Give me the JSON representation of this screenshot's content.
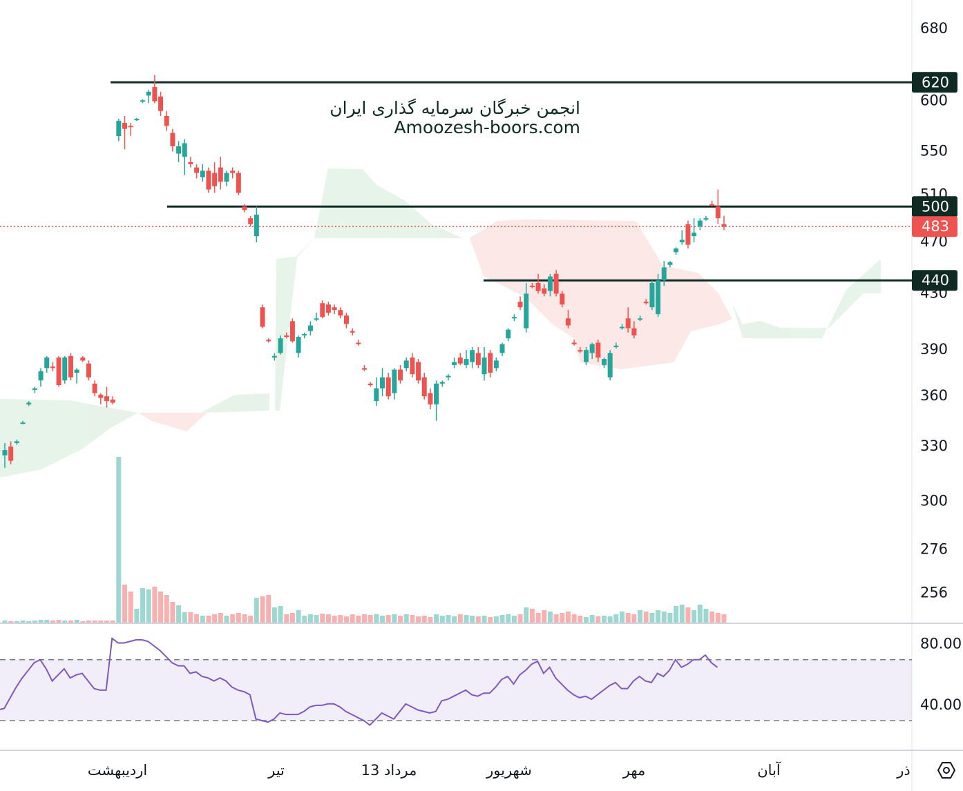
{
  "chart_data": {
    "type": "candlestick",
    "watermark": [
      "انجمن خبرگان سرمایه گذاری ایران",
      "Amoozesh-boors.com"
    ],
    "log_scale": true,
    "ylim": [
      243,
      715
    ],
    "yticks": [
      680,
      600,
      550,
      510,
      470,
      430,
      390,
      360,
      330,
      300,
      276,
      256
    ],
    "levels": [
      620,
      500,
      440
    ],
    "last_price": 483,
    "up_color": "#26a69a",
    "down_color": "#ef5350",
    "level_color": "#0e2a22",
    "time_labels": [
      "اردیبهشت",
      "تیر",
      "13 مرداد",
      "شهریور",
      "مهر",
      "آبان",
      "ذر"
    ],
    "candles": [
      [
        325,
        332,
        318,
        328
      ],
      [
        330,
        333,
        320,
        322
      ],
      [
        332,
        334,
        331,
        333
      ],
      [
        344,
        345,
        343,
        344
      ],
      [
        355,
        357,
        354,
        356
      ],
      [
        364,
        366,
        362,
        365
      ],
      [
        370,
        378,
        366,
        376
      ],
      [
        378,
        386,
        375,
        385
      ],
      [
        379,
        382,
        376,
        378
      ],
      [
        385,
        386,
        366,
        367
      ],
      [
        370,
        386,
        368,
        385
      ],
      [
        386,
        388,
        370,
        372
      ],
      [
        375,
        378,
        368,
        377
      ],
      [
        385,
        386,
        382,
        383
      ],
      [
        381,
        383,
        370,
        372
      ],
      [
        368,
        370,
        360,
        362
      ],
      [
        361,
        362,
        355,
        359
      ],
      [
        360,
        366,
        353,
        357
      ],
      [
        358,
        360,
        355,
        356
      ],
      [
        565,
        582,
        560,
        580
      ],
      [
        578,
        585,
        552,
        572
      ],
      [
        575,
        578,
        565,
        574
      ],
      [
        582,
        583,
        580,
        582
      ],
      [
        600,
        602,
        598,
        601
      ],
      [
        606,
        612,
        598,
        610
      ],
      [
        615,
        628,
        598,
        600
      ],
      [
        605,
        610,
        585,
        590
      ],
      [
        585,
        590,
        570,
        575
      ],
      [
        568,
        572,
        550,
        555
      ],
      [
        548,
        560,
        540,
        555
      ],
      [
        545,
        562,
        528,
        558
      ],
      [
        540,
        545,
        535,
        538
      ],
      [
        535,
        538,
        525,
        530
      ],
      [
        526,
        538,
        522,
        532
      ],
      [
        532,
        535,
        512,
        515
      ],
      [
        530,
        540,
        512,
        518
      ],
      [
        535,
        545,
        515,
        522
      ],
      [
        522,
        532,
        518,
        530
      ],
      [
        532,
        535,
        525,
        530
      ],
      [
        530,
        532,
        510,
        512
      ],
      [
        500,
        502,
        495,
        497
      ],
      [
        490,
        492,
        483,
        485
      ],
      [
        475,
        500,
        470,
        493
      ],
      [
        420,
        422,
        405,
        406
      ],
      [
        397,
        398,
        395,
        396
      ],
      [
        385,
        388,
        383,
        386
      ],
      [
        388,
        400,
        387,
        398
      ],
      [
        400,
        402,
        398,
        399
      ],
      [
        410,
        412,
        395,
        396
      ],
      [
        388,
        400,
        385,
        399
      ],
      [
        400,
        402,
        398,
        401
      ],
      [
        403,
        410,
        400,
        407
      ],
      [
        412,
        416,
        410,
        412
      ],
      [
        423,
        425,
        412,
        413
      ],
      [
        422,
        424,
        414,
        416
      ],
      [
        420,
        422,
        415,
        418
      ],
      [
        418,
        420,
        412,
        414
      ],
      [
        414,
        416,
        405,
        408
      ],
      [
        403,
        405,
        400,
        402
      ],
      [
        395,
        397,
        393,
        394
      ],
      [
        378,
        380,
        376,
        377
      ],
      [
        368,
        369,
        366,
        367
      ],
      [
        357,
        372,
        354,
        365
      ],
      [
        365,
        378,
        360,
        372
      ],
      [
        372,
        375,
        358,
        360
      ],
      [
        362,
        378,
        358,
        377
      ],
      [
        377,
        380,
        368,
        370
      ],
      [
        378,
        385,
        376,
        383
      ],
      [
        385,
        388,
        372,
        374
      ],
      [
        382,
        384,
        368,
        370
      ],
      [
        372,
        375,
        358,
        360
      ],
      [
        362,
        365,
        352,
        355
      ],
      [
        355,
        370,
        345,
        368
      ],
      [
        368,
        370,
        366,
        369
      ],
      [
        372,
        374,
        370,
        373
      ],
      [
        380,
        385,
        378,
        382
      ],
      [
        385,
        388,
        380,
        381
      ],
      [
        380,
        390,
        378,
        384
      ],
      [
        382,
        392,
        378,
        390
      ],
      [
        388,
        392,
        378,
        380
      ],
      [
        374,
        392,
        370,
        385
      ],
      [
        388,
        390,
        372,
        375
      ],
      [
        378,
        385,
        376,
        383
      ],
      [
        388,
        395,
        386,
        394
      ],
      [
        398,
        405,
        396,
        404
      ],
      [
        412,
        415,
        410,
        413
      ],
      [
        424,
        428,
        418,
        420
      ],
      [
        405,
        438,
        402,
        430
      ],
      [
        436,
        438,
        434,
        435
      ],
      [
        438,
        445,
        430,
        432
      ],
      [
        434,
        437,
        428,
        430
      ],
      [
        432,
        445,
        428,
        443
      ],
      [
        445,
        448,
        428,
        430
      ],
      [
        430,
        432,
        420,
        422
      ],
      [
        412,
        418,
        405,
        407
      ],
      [
        395,
        397,
        393,
        394
      ],
      [
        390,
        392,
        388,
        389
      ],
      [
        382,
        392,
        380,
        390
      ],
      [
        388,
        395,
        384,
        394
      ],
      [
        395,
        397,
        382,
        385
      ],
      [
        380,
        385,
        378,
        384
      ],
      [
        372,
        390,
        370,
        388
      ],
      [
        392,
        395,
        391,
        393
      ],
      [
        405,
        408,
        404,
        406
      ],
      [
        412,
        420,
        402,
        405
      ],
      [
        405,
        410,
        398,
        400
      ],
      [
        412,
        414,
        410,
        412
      ],
      [
        424,
        426,
        422,
        423
      ],
      [
        420,
        440,
        418,
        438
      ],
      [
        415,
        445,
        413,
        440
      ],
      [
        440,
        455,
        436,
        450
      ],
      [
        452,
        455,
        450,
        454
      ],
      [
        462,
        466,
        460,
        465
      ],
      [
        470,
        480,
        468,
        472
      ],
      [
        485,
        488,
        465,
        468
      ],
      [
        475,
        490,
        470,
        478
      ],
      [
        483,
        490,
        480,
        488
      ],
      [
        490,
        492,
        488,
        490
      ],
      [
        502,
        505,
        500,
        501
      ],
      [
        500,
        515,
        485,
        490
      ],
      [
        485,
        492,
        480,
        483
      ]
    ],
    "volume_lim": [
      0,
      250
    ],
    "volumes": [
      3,
      2,
      2,
      3,
      2,
      3,
      4,
      4,
      3,
      4,
      3,
      3,
      4,
      2,
      3,
      3,
      3,
      3,
      3,
      240,
      55,
      45,
      20,
      50,
      48,
      52,
      45,
      40,
      30,
      25,
      15,
      15,
      12,
      10,
      10,
      12,
      14,
      10,
      12,
      14,
      12,
      10,
      36,
      38,
      40,
      22,
      24,
      12,
      14,
      18,
      10,
      12,
      11,
      13,
      12,
      10,
      11,
      9,
      12,
      10,
      12,
      11,
      12,
      10,
      11,
      12,
      10,
      12,
      11,
      9,
      10,
      8,
      12,
      10,
      11,
      9,
      12,
      11,
      10,
      9,
      10,
      8,
      9,
      11,
      12,
      10,
      12,
      22,
      20,
      14,
      18,
      16,
      12,
      14,
      16,
      12,
      10,
      8,
      11,
      9,
      10,
      9,
      12,
      16,
      14,
      12,
      18,
      16,
      14,
      18,
      16,
      14,
      24,
      26,
      22,
      18,
      26,
      20,
      16,
      14,
      12
    ],
    "rsi_color": "#7e57c2",
    "rsi_ylim": [
      10.5,
      93
    ],
    "rsi_band": [
      30,
      70
    ],
    "rsi_ticks": [
      {
        "value": 80,
        "label": "80.00"
      },
      {
        "value": 40,
        "label": "40.00"
      }
    ],
    "rsi": [
      37,
      38,
      45,
      52,
      58,
      63,
      68,
      70,
      64,
      56,
      60,
      64,
      58,
      60,
      61,
      56,
      51,
      50,
      50,
      84,
      81,
      81,
      82,
      83,
      83,
      82,
      79,
      76,
      72,
      68,
      66,
      66,
      61,
      62,
      59,
      58,
      56,
      58,
      56,
      52,
      50,
      49,
      47,
      31,
      30,
      29,
      31,
      35,
      34,
      34,
      34,
      36,
      39,
      40,
      40,
      41,
      41,
      39,
      36,
      34,
      32,
      30,
      27,
      31,
      35,
      33,
      31,
      36,
      41,
      39,
      37,
      36,
      35,
      36,
      43,
      44,
      46,
      48,
      50,
      47,
      46,
      48,
      48,
      52,
      57,
      59,
      54,
      60,
      63,
      67,
      69,
      61,
      65,
      58,
      54,
      50,
      47,
      45,
      46,
      44,
      47,
      50,
      53,
      55,
      51,
      51,
      56,
      59,
      56,
      55,
      61,
      59,
      63,
      70,
      65,
      67,
      70,
      70,
      73,
      68,
      65
    ]
  }
}
